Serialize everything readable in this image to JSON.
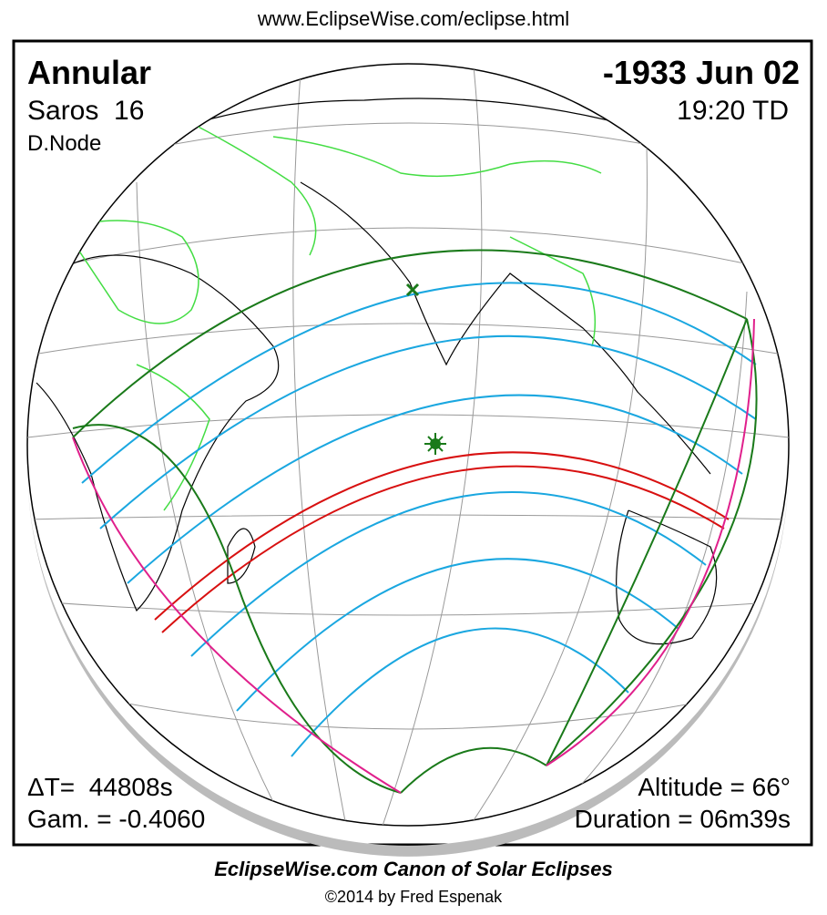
{
  "header": {
    "url": "www.EclipseWise.com/eclipse.html",
    "type": "Annular",
    "date": "-1933 Jun 02",
    "saros": "Saros  16",
    "time": "19:20 TD",
    "node": "D.Node"
  },
  "footer": {
    "delta_t": "ΔT=  44808s",
    "gamma": "Gam. = -0.4060",
    "altitude": "Altitude = 66°",
    "duration": "Duration = 06m39s"
  },
  "credits": {
    "canon": "EclipseWise.com Canon of Solar Eclipses",
    "copyright": "©2014 by Fred Espenak"
  }
}
